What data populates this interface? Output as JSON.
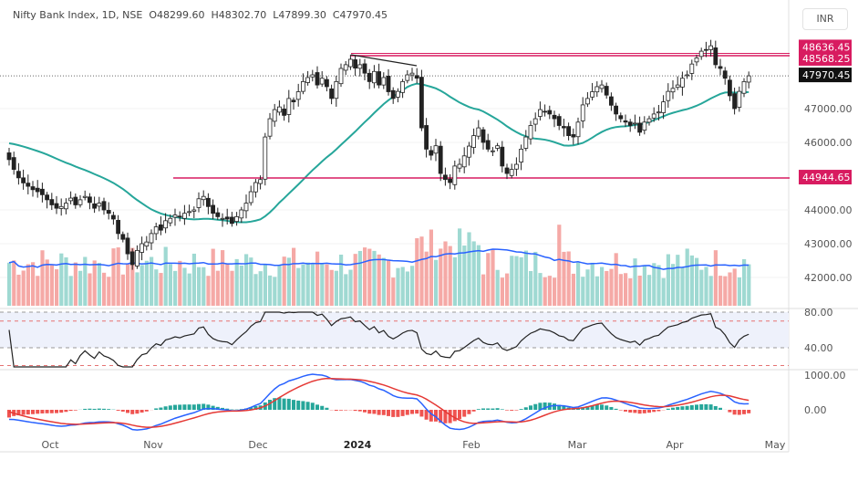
{
  "header": {
    "symbol": "Nifty Bank Index, 1D, NSE",
    "open": "O48299.60",
    "high": "H48302.70",
    "low": "L47899.30",
    "close": "C47970.45",
    "currency": "INR"
  },
  "chart_data": {
    "type": "candlestick",
    "title": "Nifty Bank Index, 1D, NSE",
    "ylim": [
      41200,
      49400
    ],
    "price_ticks": [
      "47000.00",
      "46000.00",
      "44000.00",
      "43000.00",
      "42000.00"
    ],
    "price_tick_values": [
      47000,
      46000,
      44000,
      43000,
      42000
    ],
    "levels": [
      {
        "label": "48636.45",
        "value": 48636.45
      },
      {
        "label": "48568.25",
        "value": 48568.25
      },
      {
        "label": "44944.65",
        "value": 44944.65
      }
    ],
    "last_price": {
      "label": "47970.45",
      "value": 47970.45
    },
    "rsi_ticks": [
      "80.00",
      "40.00"
    ],
    "macd_ticks": [
      "1000.00",
      "0.00"
    ],
    "time_labels": [
      "Oct",
      "Nov",
      "Dec",
      "2024",
      "Feb",
      "Mar",
      "Apr",
      "May"
    ],
    "colors": {
      "up": "#26a69a",
      "down": "#ef5350",
      "ma": "#26a69a",
      "level": "#d81b60",
      "vol_ma": "#2962ff",
      "macd": "#2962ff",
      "signal": "#e53935"
    },
    "closes": [
      45490,
      45200,
      44950,
      44800,
      44700,
      44600,
      44540,
      44450,
      44300,
      44150,
      44050,
      44100,
      44200,
      44350,
      44150,
      44300,
      44400,
      44220,
      44050,
      44200,
      44000,
      43900,
      43730,
      43300,
      43130,
      42700,
      42380,
      42800,
      43000,
      43050,
      43300,
      43500,
      43400,
      43680,
      43750,
      43850,
      43800,
      43900,
      43950,
      44000,
      44330,
      44400,
      44100,
      43900,
      43800,
      43750,
      43730,
      43600,
      43800,
      44000,
      44200,
      44540,
      44810,
      44900,
      46160,
      46700,
      46970,
      47050,
      46800,
      47300,
      47200,
      47500,
      47800,
      47920,
      48000,
      47700,
      47900,
      47650,
      47300,
      47800,
      48190,
      48300,
      48460,
      48200,
      48300,
      48050,
      47800,
      48100,
      47700,
      47920,
      47500,
      47300,
      47510,
      47800,
      48000,
      48050,
      47900,
      46430,
      45800,
      45620,
      45900,
      45080,
      44900,
      44810,
      45300,
      45350,
      45600,
      45890,
      46200,
      46430,
      46000,
      45800,
      45750,
      45900,
      45300,
      45080,
      45200,
      45350,
      45800,
      46160,
      46500,
      46700,
      46970,
      46900,
      46840,
      46700,
      46500,
      46430,
      46200,
      46160,
      46600,
      47110,
      47300,
      47500,
      47650,
      47700,
      47400,
      47100,
      46840,
      46700,
      46600,
      46500,
      46570,
      46300,
      46600,
      46700,
      46840,
      46900,
      47200,
      47510,
      47600,
      47700,
      47900,
      48000,
      48320,
      48500,
      48700,
      48750,
      48860,
      48300,
      48190,
      47900,
      47380,
      47000,
      47510,
      47800,
      47970
    ]
  }
}
